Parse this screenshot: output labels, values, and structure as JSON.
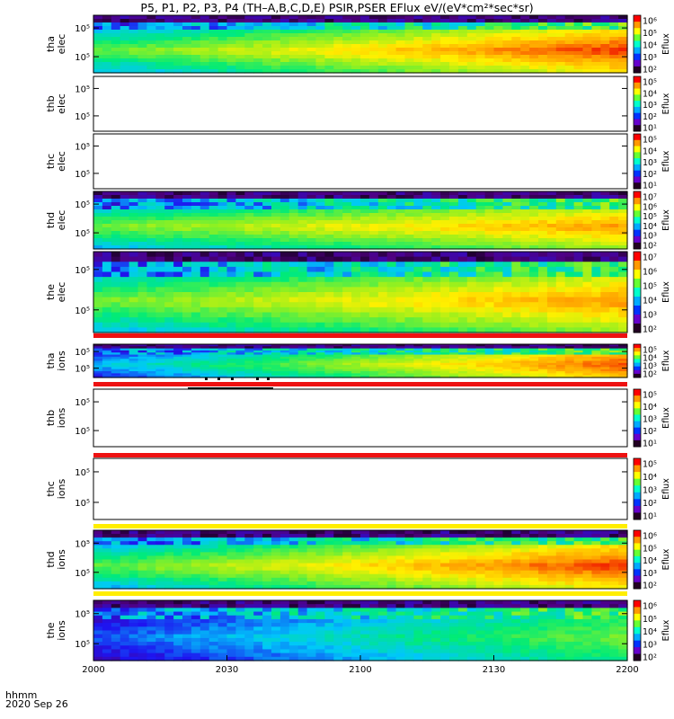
{
  "title": "P5, P1, P2, P3, P4 (TH–A,B,C,D,E) PSIR,PSER EFlux eV/(eV*cm²*sec*sr)",
  "footer": {
    "label1": "hhmm",
    "label2": "2020 Sep 26"
  },
  "chart_data": {
    "type": "heatmap",
    "x_tick_labels": [
      "2000",
      "2030",
      "2100",
      "2130",
      "2200"
    ],
    "x_range": [
      "2000",
      "2200"
    ],
    "y_scale": "log",
    "colorbar_title": "Eflux",
    "colors": {
      "bar_red": "#ee1111",
      "bar_yellow": "#ffee00",
      "empty_panel": "#ffffff"
    },
    "panels": [
      {
        "id": "tha-elec",
        "probe": "tha",
        "species": "elec",
        "filled": true,
        "profile": "strong",
        "y_tick_labels": [
          "10⁵",
          "10⁵"
        ],
        "cbar_labels": [
          "10⁶",
          "10⁵",
          "10⁴",
          "10³",
          "10²"
        ]
      },
      {
        "id": "thb-elec",
        "probe": "thb",
        "species": "elec",
        "filled": false,
        "y_tick_labels": [
          "10⁵",
          "10⁵"
        ],
        "cbar_labels": [
          "10⁵",
          "10⁴",
          "10³",
          "10²",
          "10¹"
        ]
      },
      {
        "id": "thc-elec",
        "probe": "thc",
        "species": "elec",
        "filled": false,
        "y_tick_labels": [
          "10⁵",
          "10⁵"
        ],
        "cbar_labels": [
          "10⁵",
          "10⁴",
          "10³",
          "10²",
          "10¹"
        ]
      },
      {
        "id": "thd-elec",
        "probe": "thd",
        "species": "elec",
        "filled": true,
        "profile": "medium",
        "y_tick_labels": [
          "10⁵",
          "10⁵"
        ],
        "cbar_labels": [
          "10⁷",
          "10⁶",
          "10⁵",
          "10⁴",
          "10³",
          "10²"
        ]
      },
      {
        "id": "the-elec",
        "probe": "the",
        "species": "elec",
        "filled": true,
        "profile": "medium",
        "y_tick_labels": [
          "10⁵",
          "10⁵"
        ],
        "cbar_labels": [
          "10⁷",
          "10⁶",
          "10⁵",
          "10⁴",
          "10³",
          "10²"
        ]
      },
      {
        "id": "tha-ions",
        "probe": "tha",
        "species": "ions",
        "filled": true,
        "profile": "ions_strong",
        "y_tick_labels": [
          "10⁵",
          "10⁵"
        ],
        "cbar_labels": [
          "10⁵",
          "10⁴",
          "10³",
          "10²"
        ]
      },
      {
        "id": "thb-ions",
        "probe": "thb",
        "species": "ions",
        "filled": false,
        "y_tick_labels": [
          "10⁵",
          "10⁵"
        ],
        "cbar_labels": [
          "10⁵",
          "10⁴",
          "10³",
          "10²",
          "10¹"
        ]
      },
      {
        "id": "thc-ions",
        "probe": "thc",
        "species": "ions",
        "filled": false,
        "y_tick_labels": [
          "10⁵",
          "10⁵"
        ],
        "cbar_labels": [
          "10⁵",
          "10⁴",
          "10³",
          "10²",
          "10¹"
        ]
      },
      {
        "id": "thd-ions",
        "probe": "thd",
        "species": "ions",
        "filled": true,
        "profile": "strong",
        "y_tick_labels": [
          "10⁵",
          "10⁵"
        ],
        "cbar_labels": [
          "10⁶",
          "10⁵",
          "10⁴",
          "10³",
          "10²"
        ]
      },
      {
        "id": "the-ions",
        "probe": "the",
        "species": "ions",
        "filled": true,
        "profile": "ions_weak",
        "y_tick_labels": [
          "10⁵",
          "10⁵"
        ],
        "cbar_labels": [
          "10⁶",
          "10⁵",
          "10⁴",
          "10³",
          "10²"
        ]
      }
    ],
    "separator_bars": [
      {
        "after_panel": "the-elec",
        "color": "bar_red"
      },
      {
        "after_panel": "tha-ions",
        "color": "bar_red"
      },
      {
        "after_panel": "thb-ions",
        "color": "bar_red"
      },
      {
        "after_panel": "thc-ions",
        "color": "bar_yellow"
      },
      {
        "after_panel": "thd-ions",
        "color": "bar_yellow"
      }
    ]
  }
}
